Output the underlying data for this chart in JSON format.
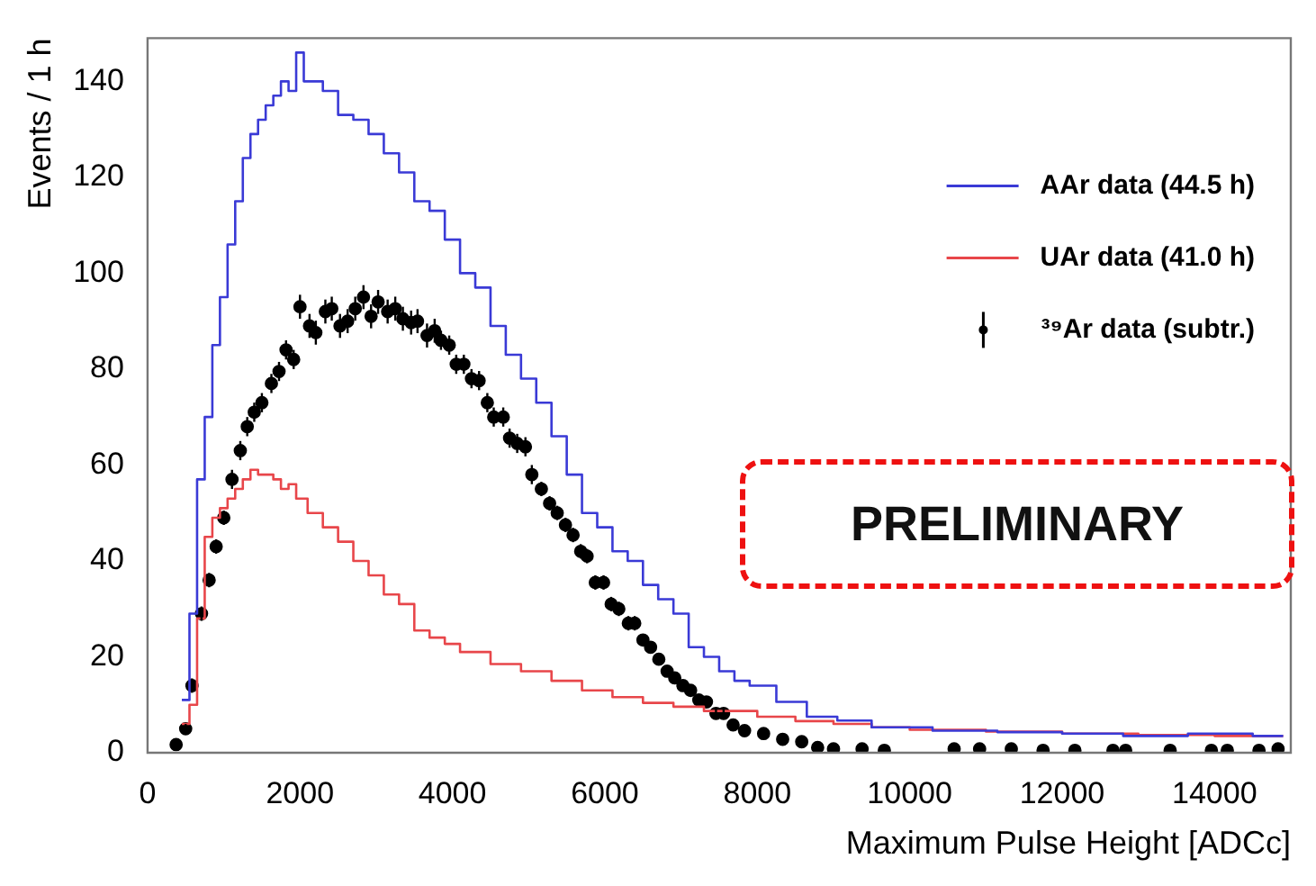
{
  "chart_data": {
    "type": "step",
    "xlabel": "Maximum Pulse Height [ADCc]",
    "ylabel": "Events / 1 h",
    "xlim": [
      0,
      15000
    ],
    "xticks": [
      0,
      2000,
      4000,
      6000,
      8000,
      10000,
      12000,
      14000
    ],
    "ylim": [
      0,
      149
    ],
    "yticks": [
      0,
      20,
      40,
      60,
      80,
      100,
      120,
      140
    ],
    "grid": false,
    "legend": "top right",
    "annotations": [
      "PRELIMINARY"
    ],
    "series": [
      {
        "type": "step",
        "name": "AAr data (44.5 h)",
        "color": "#3a3ad6",
        "x": [
          450,
          550,
          650,
          750,
          850,
          950,
          1050,
          1150,
          1250,
          1350,
          1450,
          1550,
          1650,
          1750,
          1850,
          1950,
          2050,
          2100,
          2300,
          2500,
          2700,
          2900,
          3100,
          3300,
          3500,
          3700,
          3900,
          4100,
          4300,
          4500,
          4700,
          4900,
          5100,
          5300,
          5500,
          5700,
          5900,
          6100,
          6300,
          6500,
          6700,
          6900,
          7100,
          7300,
          7500,
          7700,
          7900,
          8250,
          8650,
          9050,
          9500,
          10300,
          11150,
          12000,
          12800,
          13650,
          14500,
          14900
        ],
        "values": [
          11,
          29,
          57,
          70,
          85,
          95,
          106,
          115,
          124,
          129,
          132,
          135,
          137,
          140,
          138,
          146,
          140,
          140,
          138,
          133,
          132,
          129,
          125,
          121,
          115,
          113,
          107,
          100,
          97,
          89,
          83,
          78,
          73,
          66,
          58,
          50,
          47,
          42,
          40,
          35,
          32,
          29,
          22,
          20,
          17,
          15,
          14,
          10.6,
          7.5,
          6.7,
          5.3,
          4.6,
          4.3,
          4,
          3.5,
          4,
          3.5,
          3.5
        ]
      },
      {
        "type": "step",
        "name": "UAr data (41.0 h)",
        "color": "#e8464a",
        "x": [
          450,
          550,
          650,
          750,
          850,
          950,
          1050,
          1150,
          1250,
          1350,
          1450,
          1550,
          1650,
          1750,
          1850,
          1950,
          2100,
          2300,
          2500,
          2700,
          2900,
          3100,
          3300,
          3500,
          3700,
          3900,
          4100,
          4300,
          4500,
          4700,
          4900,
          5100,
          5300,
          5500,
          5700,
          5900,
          6100,
          6300,
          6500,
          6700,
          6900,
          7100,
          7300,
          7500,
          7700,
          8000,
          8500,
          9000,
          9500,
          10000,
          11000,
          12000,
          13000,
          14000,
          14900
        ],
        "values": [
          6,
          10,
          28,
          45,
          49,
          51,
          53,
          55,
          57,
          59,
          58,
          58,
          57,
          55,
          56,
          53,
          50,
          47,
          44,
          40,
          37,
          33,
          31,
          25.5,
          24,
          22.7,
          21,
          21,
          18.5,
          18.5,
          17,
          17,
          15,
          15,
          13,
          13,
          11.6,
          11.6,
          10.4,
          10.4,
          9.6,
          9.6,
          8.7,
          8.7,
          8.7,
          7.5,
          6.6,
          6,
          5.3,
          4.8,
          4.4,
          4,
          3.7,
          3.5,
          3.5
        ]
      },
      {
        "type": "scatter",
        "name": "³⁹Ar data (subtr.)",
        "color": "#000000",
        "marker": "circle",
        "x": [
          375,
          500,
          583,
          708,
          808,
          900,
          1000,
          1108,
          1217,
          1308,
          1400,
          1500,
          1625,
          1725,
          1817,
          1917,
          2000,
          2125,
          2208,
          2333,
          2417,
          2525,
          2625,
          2725,
          2833,
          2933,
          3025,
          3150,
          3250,
          3350,
          3458,
          3542,
          3667,
          3767,
          3850,
          3958,
          4050,
          4150,
          4250,
          4350,
          4458,
          4542,
          4667,
          4750,
          4850,
          4958,
          5042,
          5167,
          5275,
          5375,
          5483,
          5583,
          5683,
          5767,
          5875,
          5983,
          6083,
          6183,
          6308,
          6392,
          6500,
          6600,
          6708,
          6817,
          6917,
          7025,
          7125,
          7233,
          7333,
          7458,
          7558,
          7683,
          7833,
          8083,
          8333,
          8583,
          8792,
          9000,
          9375,
          9667,
          10583,
          10917,
          11333,
          11750,
          12167,
          12667,
          12833,
          13417,
          13958,
          14167,
          14583,
          14833
        ],
        "values": [
          1.7,
          5,
          14,
          29,
          36,
          43,
          49,
          57,
          63,
          68,
          71,
          73,
          77,
          79.5,
          84,
          82,
          93,
          89,
          87.6,
          92,
          92.6,
          89,
          90,
          92.6,
          95,
          91,
          94,
          92,
          92.6,
          90.5,
          89.7,
          90,
          87,
          88,
          86,
          85,
          81,
          81,
          78,
          77.6,
          73,
          70,
          70,
          65.6,
          64.5,
          63.8,
          58,
          55,
          52,
          50,
          47.5,
          45.4,
          42,
          41,
          35.5,
          35.5,
          31,
          30,
          27,
          27,
          23.5,
          22,
          19.5,
          17,
          15.6,
          14,
          13,
          11,
          10.6,
          8.2,
          8.2,
          5.8,
          4.6,
          4,
          2.8,
          2.3,
          1.1,
          0.8,
          0.8,
          0.5,
          0.8,
          0.8,
          0.8,
          0.5,
          0.5,
          0.5,
          0.5,
          0.5,
          0.5,
          0.5,
          0.5,
          0.8
        ],
        "errors": [
          1,
          1,
          1.5,
          1.5,
          1.5,
          1.5,
          1.5,
          2,
          2,
          2,
          2,
          2,
          2,
          2,
          2,
          2,
          2.5,
          2.5,
          2.5,
          2.5,
          2.5,
          2.5,
          2.5,
          2.5,
          2.5,
          2.5,
          2.5,
          2.5,
          2.5,
          2.5,
          2.5,
          2.5,
          2.5,
          2.5,
          2,
          2,
          2,
          2,
          2,
          2,
          2,
          2,
          2,
          2,
          2,
          2,
          2,
          1.5,
          1.5,
          1.5,
          1.5,
          1.5,
          1.5,
          1.5,
          1.5,
          1.5,
          1.5,
          1.5,
          1.5,
          1.5,
          1,
          1,
          1,
          1,
          1,
          1,
          1,
          1,
          1,
          1,
          1,
          1,
          0.8,
          0.8,
          0.8,
          0.8,
          0.5,
          0.5,
          0.5,
          0.5,
          0.5,
          0.5,
          0.5,
          0.5,
          0.5,
          0.5,
          0.5,
          0.5,
          0.5,
          0.5,
          0.5,
          0.5
        ]
      }
    ]
  }
}
